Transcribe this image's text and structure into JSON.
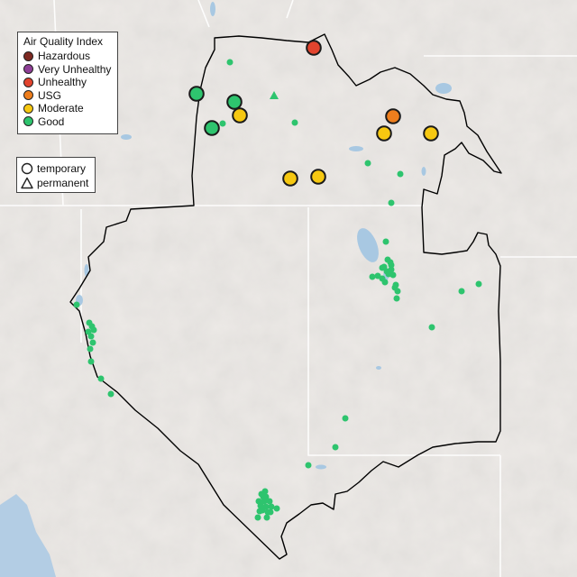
{
  "legend": {
    "title": "Air Quality Index",
    "categories": [
      {
        "label": "Hazardous",
        "color": "#7e2a22"
      },
      {
        "label": "Very Unhealthy",
        "color": "#8f3f97"
      },
      {
        "label": "Unhealthy",
        "color": "#e2442e"
      },
      {
        "label": "USG",
        "color": "#ee7e1d"
      },
      {
        "label": "Moderate",
        "color": "#f6c811"
      },
      {
        "label": "Good",
        "color": "#2ec46e"
      }
    ],
    "monitor_types": [
      {
        "label": "temporary",
        "shape": "circle-icon"
      },
      {
        "label": "permanent",
        "shape": "triangle-icon"
      }
    ]
  },
  "map_colors": {
    "land": "#ece9e6",
    "water": "#a8c8e2",
    "ocean": "#b3cde4",
    "border": "#000000",
    "state_lines": "#ffffff"
  },
  "monitors": {
    "large": [
      {
        "aqi": "Unhealthy",
        "type": "temporary"
      },
      {
        "aqi": "Good",
        "type": "temporary"
      },
      {
        "aqi": "Good",
        "type": "temporary"
      },
      {
        "aqi": "Moderate",
        "type": "temporary"
      },
      {
        "aqi": "Good",
        "type": "temporary"
      },
      {
        "aqi": "USG",
        "type": "temporary"
      },
      {
        "aqi": "Moderate",
        "type": "temporary"
      },
      {
        "aqi": "Moderate",
        "type": "temporary"
      },
      {
        "aqi": "Moderate",
        "type": "temporary"
      },
      {
        "aqi": "Moderate",
        "type": "temporary"
      }
    ],
    "small_good_count": 58,
    "permanent_good_count": 1
  }
}
